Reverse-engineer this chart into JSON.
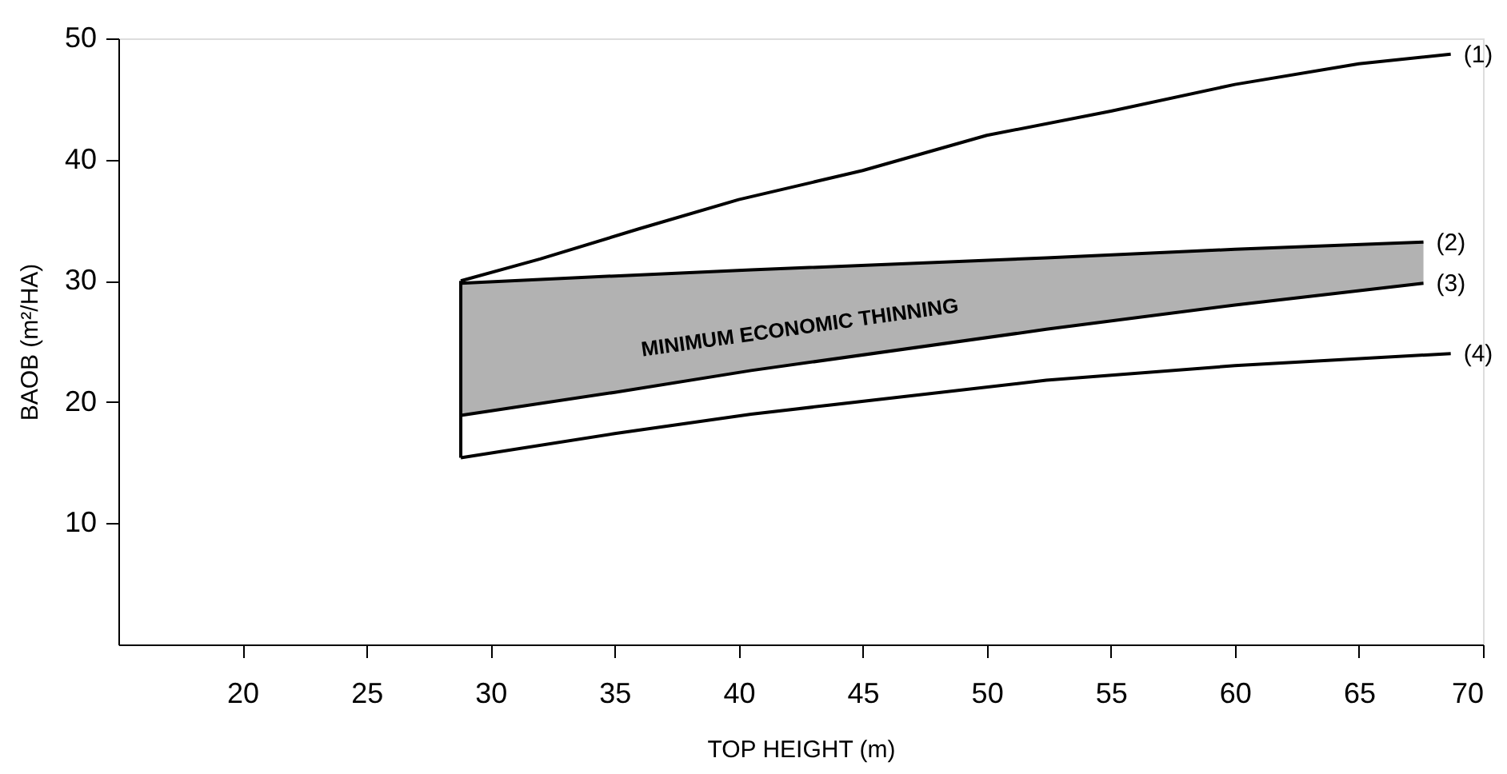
{
  "chart_data": {
    "type": "line",
    "xlabel": "TOP HEIGHT (m)",
    "ylabel": "BAOB (m²/HA)",
    "xlim": [
      15,
      70
    ],
    "xticks": [
      20,
      25,
      30,
      35,
      40,
      45,
      50,
      55,
      60,
      65,
      70
    ],
    "ylim": [
      0,
      50
    ],
    "yticks": [
      10,
      20,
      30,
      40,
      50
    ],
    "grid": false,
    "marker": "none",
    "line_style": "solid",
    "series": [
      {
        "name": "(1)",
        "color": "#000000",
        "x": [
          28.8,
          32,
          36,
          40,
          45,
          50,
          55,
          60,
          65,
          68.7
        ],
        "values": [
          30.0,
          31.8,
          34.3,
          36.7,
          39.1,
          42.0,
          44.0,
          46.2,
          47.9,
          48.7
        ]
      },
      {
        "name": "(2)",
        "color": "#000000",
        "x": [
          28.8,
          35,
          40.5,
          52.4,
          60,
          67.6
        ],
        "values": [
          29.8,
          30.4,
          30.9,
          31.9,
          32.6,
          33.2
        ],
        "lower": [
          18.9,
          20.8,
          22.6,
          26.0,
          28.0,
          29.8
        ],
        "upper": [
          29.8,
          30.4,
          30.9,
          31.9,
          32.6,
          33.2
        ]
      },
      {
        "name": "(3)",
        "color": "#000000",
        "x": [
          28.8,
          35,
          40.5,
          52.4,
          60,
          67.6
        ],
        "values": [
          18.9,
          20.8,
          22.6,
          26.0,
          28.0,
          29.8
        ]
      },
      {
        "name": "(4)",
        "color": "#000000",
        "x": [
          28.8,
          35,
          40.5,
          52.4,
          60,
          68.7
        ],
        "values": [
          15.4,
          17.4,
          19.0,
          21.8,
          23.0,
          24.0
        ]
      },
      {
        "color": "#000000",
        "x": [
          28.8,
          28.8
        ],
        "values": [
          15.4,
          30.0
        ]
      }
    ],
    "annotations": [
      "MINIMUM ECONOMIC THINNING"
    ]
  }
}
